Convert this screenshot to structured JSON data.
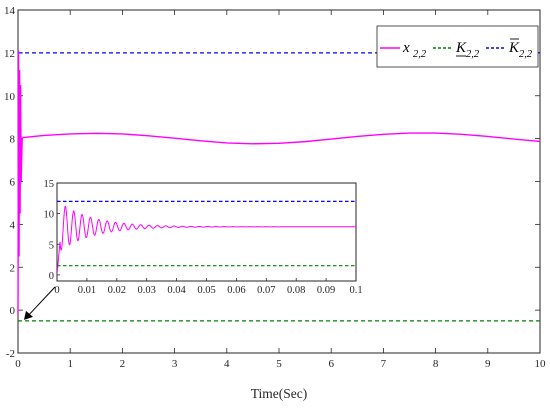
{
  "chart_data": [
    {
      "type": "line",
      "title": "",
      "xlabel": "Time(Sec)",
      "ylabel": "",
      "xlim": [
        0,
        10
      ],
      "ylim": [
        -2,
        14
      ],
      "xticks": [
        0,
        1,
        2,
        3,
        4,
        5,
        6,
        7,
        8,
        9,
        10
      ],
      "yticks": [
        -2,
        0,
        2,
        4,
        6,
        8,
        10,
        12,
        14
      ],
      "grid": false,
      "legend_position": "top-right",
      "series": [
        {
          "name": "x2,2",
          "legend_main": "x",
          "legend_sub": "2,2",
          "legend_mark": "",
          "color": "#ff00ff",
          "style": "solid",
          "x": [
            0,
            0.01,
            0.02,
            0.03,
            0.04,
            0.05,
            0.06,
            0.08,
            0.1,
            0.5,
            1.0,
            1.5,
            2.0,
            2.5,
            3.0,
            3.5,
            4.0,
            4.5,
            5.0,
            5.5,
            6.0,
            6.5,
            7.0,
            7.5,
            8.0,
            8.5,
            9.0,
            9.5,
            10.0
          ],
          "y": [
            -0.2,
            12.1,
            2.5,
            11.2,
            4.5,
            10.5,
            6.0,
            8.0,
            8.05,
            8.15,
            8.22,
            8.25,
            8.22,
            8.13,
            8.02,
            7.9,
            7.8,
            7.76,
            7.78,
            7.86,
            7.98,
            8.1,
            8.2,
            8.26,
            8.26,
            8.2,
            8.1,
            7.98,
            7.87
          ]
        },
        {
          "name": "K2,2 lower",
          "legend_main": "K",
          "legend_sub": "2,2",
          "legend_mark": "underline",
          "color": "#008000",
          "style": "dashed",
          "x": [
            0,
            10
          ],
          "y": [
            -0.5,
            -0.5
          ]
        },
        {
          "name": "K2,2 upper",
          "legend_main": "K",
          "legend_sub": "2,2",
          "legend_mark": "bar",
          "color": "#0000ff",
          "style": "dashed",
          "x": [
            0,
            10
          ],
          "y": [
            12,
            12
          ]
        }
      ]
    },
    {
      "type": "line",
      "role": "inset-zoom",
      "xlim": [
        0,
        0.1
      ],
      "ylim": [
        -1,
        15
      ],
      "xticks": [
        0,
        0.01,
        0.02,
        0.03,
        0.04,
        0.05,
        0.06,
        0.07,
        0.08,
        0.09,
        0.1
      ],
      "yticks": [
        0,
        5,
        10,
        15
      ],
      "series": [
        {
          "name": "x2,2",
          "color": "#ff00ff",
          "style": "solid",
          "damped": {
            "start": 0,
            "settle": 7.85,
            "amp": 4.3,
            "period": 0.0028,
            "decay": 0.011
          }
        },
        {
          "name": "K2,2 lower",
          "color": "#008000",
          "style": "dashed",
          "x": [
            0,
            0.1
          ],
          "y": [
            1.5,
            1.5
          ]
        },
        {
          "name": "K2,2 upper",
          "color": "#0000ff",
          "style": "dashed",
          "x": [
            0,
            0.1
          ],
          "y": [
            12,
            12
          ]
        }
      ]
    }
  ]
}
